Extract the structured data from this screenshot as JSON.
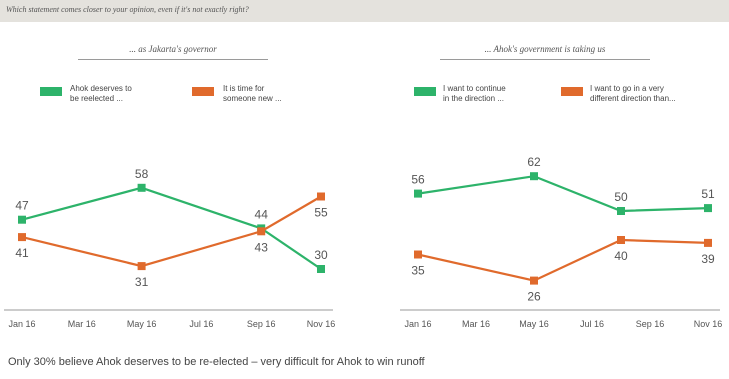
{
  "question": "Which statement comes closer to your opinion, even if it's not exactly right?",
  "footnote": "Only 30% believe Ahok deserves to be re-elected – very difficult for Ahok to win runoff",
  "colors": {
    "green": "#2db36a",
    "orange": "#e06a2c",
    "axis": "#999999"
  },
  "chart_data": [
    {
      "type": "line",
      "title": "... as Jakarta's governor",
      "x_tick_labels": [
        "Jan 16",
        "Mar 16",
        "May 16",
        "Jul 16",
        "Sep 16",
        "Nov 16"
      ],
      "series": [
        {
          "name": "Ahok deserves to be reelected ...",
          "legend": [
            "Ahok deserves to",
            "be reelected ..."
          ],
          "color": "green",
          "points": [
            {
              "x": "Jan 16",
              "y": 47
            },
            {
              "x": "May 16",
              "y": 58
            },
            {
              "x": "Sep 16",
              "y": 44
            },
            {
              "x": "Nov 16",
              "y": 30
            }
          ]
        },
        {
          "name": "It is time for someone new ...",
          "legend": [
            "It is time for",
            "someone new ..."
          ],
          "color": "orange",
          "points": [
            {
              "x": "Jan 16",
              "y": 41
            },
            {
              "x": "May 16",
              "y": 31
            },
            {
              "x": "Sep 16",
              "y": 43
            },
            {
              "x": "Nov 16",
              "y": 55
            }
          ]
        }
      ]
    },
    {
      "type": "line",
      "title": "... Ahok's government is taking us",
      "x_tick_labels": [
        "Jan 16",
        "Mar 16",
        "May 16",
        "Jul 16",
        "Sep 16",
        "Nov 16"
      ],
      "series": [
        {
          "name": "I want to continue in the direction ...",
          "legend": [
            "I want to continue",
            "in the direction ..."
          ],
          "color": "green",
          "points": [
            {
              "x": "Jan 16",
              "y": 56
            },
            {
              "x": "May 16",
              "y": 62
            },
            {
              "x": "Aug 16",
              "y": 50
            },
            {
              "x": "Nov 16",
              "y": 51
            }
          ]
        },
        {
          "name": "I want to go in a very different direction than ...",
          "legend": [
            "I want to go in a very",
            "different direction than..."
          ],
          "color": "orange",
          "points": [
            {
              "x": "Jan 16",
              "y": 35
            },
            {
              "x": "May 16",
              "y": 26
            },
            {
              "x": "Aug 16",
              "y": 40
            },
            {
              "x": "Nov 16",
              "y": 39
            }
          ]
        }
      ]
    }
  ]
}
